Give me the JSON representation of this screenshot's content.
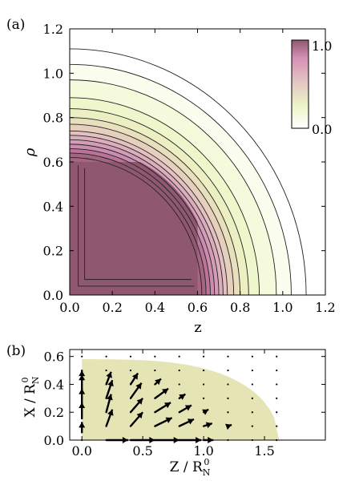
{
  "chart_data": [
    {
      "type": "heatmap",
      "panel_label": "(a)",
      "xlabel": "z",
      "ylabel": "ρ",
      "xlim": [
        0,
        1.2
      ],
      "ylim": [
        0,
        1.2
      ],
      "x_ticks": [
        "0.0",
        "0.2",
        "0.4",
        "0.6",
        "0.8",
        "1.0",
        "1.2"
      ],
      "y_ticks": [
        "0.0",
        "0.2",
        "0.4",
        "0.6",
        "0.8",
        "1.0",
        "1.2"
      ],
      "colorbar": {
        "min_label": "0.0",
        "max_label": "1.0",
        "range": [
          0,
          1
        ],
        "colors": [
          "#ffffff",
          "#eef5c8",
          "#e3c1c2",
          "#d48fb4",
          "#8f5870"
        ]
      },
      "core_region": {
        "value": 1.0,
        "z_extent": 0.6,
        "rho_extent": 0.6
      },
      "contour_radii": [
        0.62,
        0.64,
        0.66,
        0.68,
        0.7,
        0.72,
        0.74,
        0.77,
        0.8,
        0.84,
        0.89,
        0.97,
        1.04,
        1.11
      ],
      "legend_placement": "top-right",
      "grid": false
    },
    {
      "type": "scatter",
      "subtype": "vector-field",
      "panel_label": "(b)",
      "xlabel": "Z / R",
      "xlabel_sub": "N",
      "xlabel_sup": "0",
      "ylabel": "X / R",
      "ylabel_sub": "N",
      "ylabel_sup": "0",
      "xlim": [
        -0.1,
        2.0
      ],
      "ylim": [
        0,
        0.65
      ],
      "x_ticks": [
        "0.0",
        "0.5",
        "1.0",
        "1.5"
      ],
      "y_ticks": [
        "0.0",
        "0.2",
        "0.4",
        "0.6"
      ],
      "region": {
        "color": "#e4e4b4",
        "z_max": 1.62,
        "x_max": 0.58
      },
      "grid_z": [
        0.0,
        0.2,
        0.4,
        0.6,
        0.8,
        1.0,
        1.2,
        1.4,
        1.6
      ],
      "grid_x": [
        0.0,
        0.1,
        0.2,
        0.3,
        0.4,
        0.5,
        0.6
      ],
      "vectors": [
        {
          "z": 0.0,
          "x": 0.05,
          "dz": 0.0,
          "dx": 0.08
        },
        {
          "z": 0.0,
          "x": 0.15,
          "dz": 0.0,
          "dx": 0.12
        },
        {
          "z": 0.0,
          "x": 0.25,
          "dz": 0.0,
          "dx": 0.12
        },
        {
          "z": 0.0,
          "x": 0.35,
          "dz": 0.0,
          "dx": 0.12
        },
        {
          "z": 0.0,
          "x": 0.45,
          "dz": 0.0,
          "dx": 0.05
        },
        {
          "z": 0.2,
          "x": 0.1,
          "dz": 0.05,
          "dx": 0.12
        },
        {
          "z": 0.2,
          "x": 0.2,
          "dz": 0.04,
          "dx": 0.13
        },
        {
          "z": 0.2,
          "x": 0.3,
          "dz": 0.05,
          "dx": 0.13
        },
        {
          "z": 0.2,
          "x": 0.4,
          "dz": 0.04,
          "dx": 0.09
        },
        {
          "z": 0.4,
          "x": 0.1,
          "dz": 0.1,
          "dx": 0.1
        },
        {
          "z": 0.4,
          "x": 0.2,
          "dz": 0.1,
          "dx": 0.1
        },
        {
          "z": 0.4,
          "x": 0.3,
          "dz": 0.09,
          "dx": 0.11
        },
        {
          "z": 0.4,
          "x": 0.4,
          "dz": 0.06,
          "dx": 0.08
        },
        {
          "z": 0.6,
          "x": 0.1,
          "dz": 0.14,
          "dx": 0.06
        },
        {
          "z": 0.6,
          "x": 0.2,
          "dz": 0.13,
          "dx": 0.07
        },
        {
          "z": 0.6,
          "x": 0.3,
          "dz": 0.11,
          "dx": 0.07
        },
        {
          "z": 0.6,
          "x": 0.4,
          "dz": 0.05,
          "dx": 0.04
        },
        {
          "z": 0.8,
          "x": 0.1,
          "dz": 0.12,
          "dx": 0.05
        },
        {
          "z": 0.8,
          "x": 0.2,
          "dz": 0.1,
          "dx": 0.05
        },
        {
          "z": 0.8,
          "x": 0.3,
          "dz": 0.05,
          "dx": 0.03
        },
        {
          "z": 1.0,
          "x": 0.1,
          "dz": 0.07,
          "dx": 0.02
        },
        {
          "z": 1.0,
          "x": 0.2,
          "dz": 0.04,
          "dx": 0.02
        },
        {
          "z": 1.2,
          "x": 0.1,
          "dz": 0.03,
          "dx": 0.01
        },
        {
          "z": 0.2,
          "x": 0.0,
          "dz": 0.18,
          "dx": 0.0
        },
        {
          "z": 0.4,
          "x": 0.0,
          "dz": 0.2,
          "dx": 0.0
        },
        {
          "z": 0.6,
          "x": 0.0,
          "dz": 0.2,
          "dx": 0.0
        },
        {
          "z": 0.8,
          "x": 0.0,
          "dz": 0.18,
          "dx": 0.0
        },
        {
          "z": 1.0,
          "x": 0.0,
          "dz": 0.08,
          "dx": 0.0
        }
      ],
      "grid": false
    }
  ]
}
